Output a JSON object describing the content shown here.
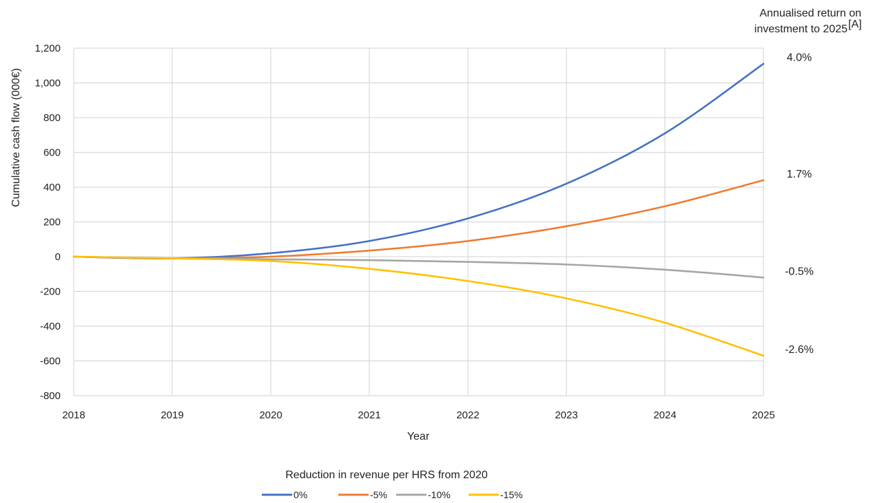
{
  "chart_data": {
    "type": "line",
    "title": "",
    "xlabel": "Year",
    "ylabel": "Cumulative cash flow (000€)",
    "x": [
      2018,
      2019,
      2020,
      2021,
      2022,
      2023,
      2024,
      2025
    ],
    "x_ticks": [
      "2018",
      "2019",
      "2020",
      "2021",
      "2022",
      "2023",
      "2024",
      "2025"
    ],
    "xlim": [
      2018,
      2025
    ],
    "ylim": [
      -800,
      1200
    ],
    "y_ticks": [
      "-800",
      "-600",
      "-400",
      "-200",
      "0",
      "200",
      "400",
      "600",
      "800",
      "1,000",
      "1,200"
    ],
    "y_tick_values": [
      -800,
      -600,
      -400,
      -200,
      0,
      200,
      400,
      600,
      800,
      1000,
      1200
    ],
    "grid": true,
    "legend_title": "Reduction in revenue per HRS from 2020",
    "legend_position": "bottom",
    "annotation_title_line1": "Annualised return on",
    "annotation_title_line2": "investment to 2025",
    "annotation_title_superscript": "[A]",
    "series": [
      {
        "name": "0%",
        "color": "#4472C4",
        "values": [
          0,
          -10,
          20,
          90,
          220,
          420,
          710,
          1110
        ],
        "annotation": "4.0%"
      },
      {
        "name": "-5%",
        "color": "#ED7D31",
        "values": [
          0,
          -10,
          0,
          35,
          90,
          175,
          290,
          440
        ],
        "annotation": "1.7%"
      },
      {
        "name": "-10%",
        "color": "#A5A5A5",
        "values": [
          0,
          -10,
          -15,
          -20,
          -30,
          -45,
          -75,
          -120
        ],
        "annotation": "-0.5%"
      },
      {
        "name": "-15%",
        "color": "#FFC000",
        "values": [
          0,
          -10,
          -25,
          -70,
          -140,
          -240,
          -380,
          -570
        ],
        "annotation": "-2.6%"
      }
    ]
  }
}
